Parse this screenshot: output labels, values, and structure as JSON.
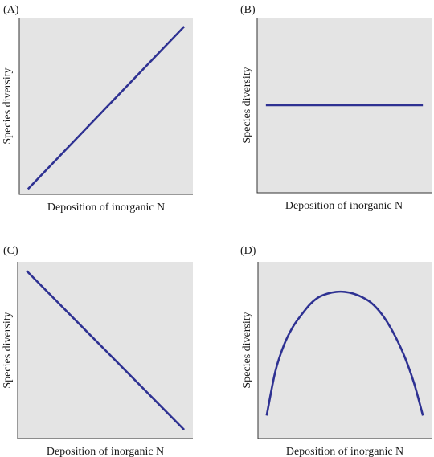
{
  "chart_data": [
    {
      "type": "line",
      "panel": "(A)",
      "xlabel": "Deposition of inorganic N",
      "ylabel": "Species diversity",
      "xlim": [
        0,
        1
      ],
      "ylim": [
        0,
        1
      ],
      "series": [
        {
          "color": "#2e3192",
          "x": [
            0.05,
            0.95
          ],
          "y": [
            0.03,
            0.95
          ]
        }
      ]
    },
    {
      "type": "line",
      "panel": "(B)",
      "xlabel": "Deposition of inorganic N",
      "ylabel": "Species diversity",
      "xlim": [
        0,
        1
      ],
      "ylim": [
        0,
        1
      ],
      "series": [
        {
          "color": "#2e3192",
          "x": [
            0.05,
            0.95
          ],
          "y": [
            0.5,
            0.5
          ]
        }
      ]
    },
    {
      "type": "line",
      "panel": "(C)",
      "xlabel": "Deposition of inorganic N",
      "ylabel": "Species diversity",
      "xlim": [
        0,
        1
      ],
      "ylim": [
        0,
        1
      ],
      "series": [
        {
          "color": "#2e3192",
          "x": [
            0.05,
            0.95
          ],
          "y": [
            0.95,
            0.05
          ]
        }
      ]
    },
    {
      "type": "line",
      "panel": "(D)",
      "xlabel": "Deposition of inorganic N",
      "ylabel": "Species diversity",
      "xlim": [
        0,
        1
      ],
      "ylim": [
        0,
        1
      ],
      "series": [
        {
          "color": "#2e3192",
          "x": [
            0.05,
            0.1,
            0.15,
            0.2,
            0.25,
            0.3,
            0.35,
            0.4,
            0.45,
            0.5,
            0.55,
            0.6,
            0.65,
            0.7,
            0.75,
            0.8,
            0.85,
            0.9,
            0.95
          ],
          "y": [
            0.13,
            0.38,
            0.53,
            0.63,
            0.7,
            0.76,
            0.8,
            0.82,
            0.83,
            0.83,
            0.82,
            0.8,
            0.77,
            0.72,
            0.65,
            0.56,
            0.45,
            0.31,
            0.13
          ]
        }
      ]
    }
  ]
}
